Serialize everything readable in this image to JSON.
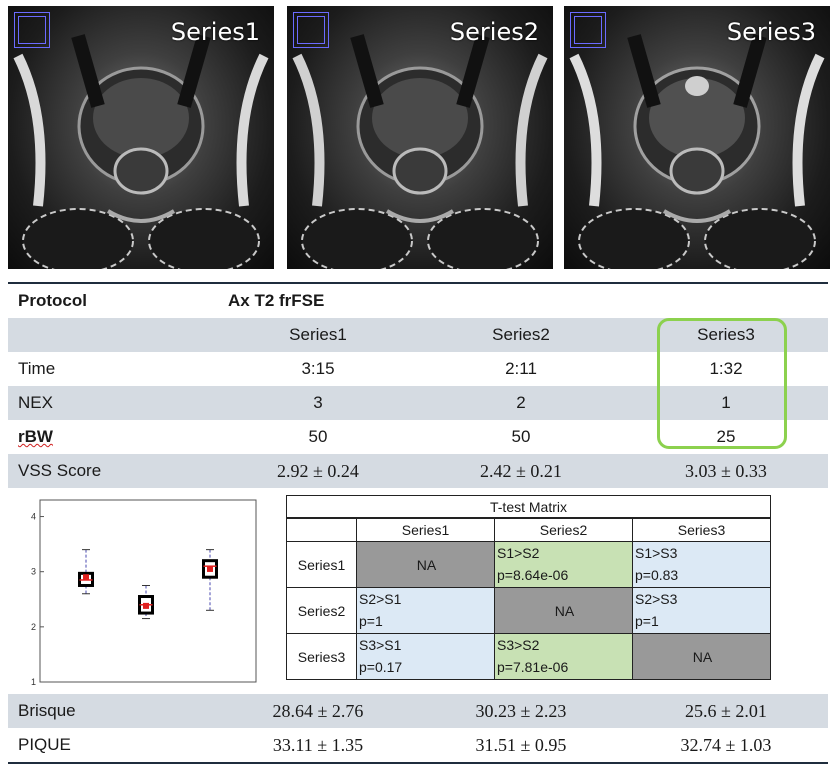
{
  "images": [
    {
      "label": "Series1"
    },
    {
      "label": "Series2"
    },
    {
      "label": "Series3"
    }
  ],
  "protocol": {
    "label": "Protocol",
    "value": "Ax T2 frFSE"
  },
  "columns": [
    "Series1",
    "Series2",
    "Series3"
  ],
  "rows": [
    {
      "label": "Time",
      "values": [
        "3:15",
        "2:11",
        "1:32"
      ]
    },
    {
      "label": "NEX",
      "values": [
        "3",
        "2",
        "1"
      ]
    },
    {
      "label": "rBW",
      "values": [
        "50",
        "50",
        "25"
      ]
    }
  ],
  "vss": {
    "label": "VSS Score",
    "values": [
      "2.92 ± 0.24",
      "2.42 ± 0.21",
      "3.03 ± 0.33"
    ]
  },
  "brisque": {
    "label": "Brisque",
    "values": [
      "28.64 ± 2.76",
      "30.23 ± 2.23",
      "25.6 ± 2.01"
    ]
  },
  "pique": {
    "label": "PIQUE",
    "values": [
      "33.11 ± 1.35",
      "31.51 ± 0.95",
      "32.74 ± 1.03"
    ]
  },
  "ttest": {
    "title": "T-test Matrix",
    "headers": [
      "Series1",
      "Series2",
      "Series3"
    ],
    "rows": [
      {
        "label": "Series1",
        "cells": [
          {
            "l1": "NA",
            "l2": ""
          },
          {
            "l1": "S1>S2",
            "l2": "p=8.64e-06"
          },
          {
            "l1": "S1>S3",
            "l2": "p=0.83"
          }
        ]
      },
      {
        "label": "Series2",
        "cells": [
          {
            "l1": "S2>S1",
            "l2": "p=1"
          },
          {
            "l1": "NA",
            "l2": ""
          },
          {
            "l1": "S2>S3",
            "l2": "p=1"
          }
        ]
      },
      {
        "label": "Series3",
        "cells": [
          {
            "l1": "S3>S1",
            "l2": "p=0.17"
          },
          {
            "l1": "S3>S2",
            "l2": "p=7.81e-06"
          },
          {
            "l1": "NA",
            "l2": ""
          }
        ]
      }
    ]
  },
  "chart_data": {
    "type": "box",
    "title": "",
    "xlabel": "",
    "ylabel": "",
    "yticks": [
      "1",
      "2",
      "3",
      "4"
    ],
    "ylim": [
      1,
      4.3
    ],
    "boxes": [
      {
        "mean": 2.9,
        "q1": 2.75,
        "median": 2.85,
        "q3": 2.97,
        "whisker_low": 2.6,
        "whisker_high": 3.4
      },
      {
        "mean": 2.38,
        "q1": 2.25,
        "median": 2.4,
        "q3": 2.55,
        "whisker_low": 2.15,
        "whisker_high": 2.75
      },
      {
        "mean": 3.05,
        "q1": 2.9,
        "median": 3.1,
        "q3": 3.2,
        "whisker_low": 2.3,
        "whisker_high": 3.4
      }
    ],
    "colors": {
      "box": "#000000",
      "mean": "#e02020",
      "median": "#e02020",
      "whisker": "#4a4ab0"
    }
  },
  "colors": {
    "shade": "#d5dbe2",
    "highlight": "#8cd14e",
    "na": "#999999",
    "blue": "#dce9f5",
    "green": "#c8e1b4"
  }
}
